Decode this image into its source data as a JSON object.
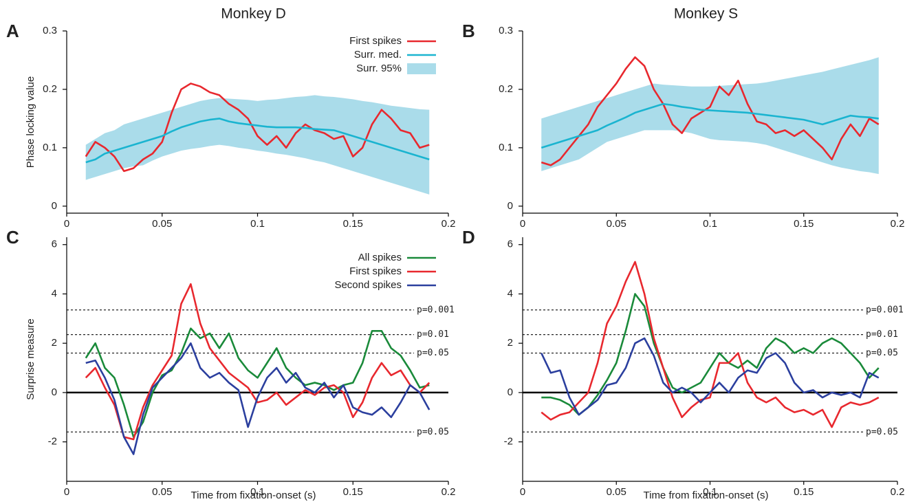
{
  "chart_data": [
    {
      "type": "line",
      "panel_label": "A",
      "title": "Monkey D",
      "y_label": "Phase locking value",
      "legend": "upper right",
      "x": [
        0.01,
        0.015,
        0.02,
        0.025,
        0.03,
        0.035,
        0.04,
        0.045,
        0.05,
        0.055,
        0.06,
        0.065,
        0.07,
        0.075,
        0.08,
        0.085,
        0.09,
        0.095,
        0.1,
        0.105,
        0.11,
        0.115,
        0.12,
        0.125,
        0.13,
        0.135,
        0.14,
        0.145,
        0.15,
        0.155,
        0.16,
        0.165,
        0.17,
        0.175,
        0.18,
        0.185,
        0.19
      ],
      "band": {
        "name": "Surr. 95%",
        "color": "#aadcea",
        "upper": [
          0.105,
          0.115,
          0.125,
          0.13,
          0.14,
          0.145,
          0.15,
          0.155,
          0.16,
          0.165,
          0.17,
          0.175,
          0.18,
          0.183,
          0.185,
          0.184,
          0.183,
          0.182,
          0.18,
          0.182,
          0.183,
          0.185,
          0.187,
          0.188,
          0.19,
          0.188,
          0.187,
          0.185,
          0.183,
          0.18,
          0.178,
          0.175,
          0.172,
          0.17,
          0.168,
          0.166,
          0.165
        ],
        "lower": [
          0.045,
          0.05,
          0.055,
          0.06,
          0.065,
          0.068,
          0.07,
          0.078,
          0.085,
          0.09,
          0.095,
          0.098,
          0.1,
          0.103,
          0.105,
          0.103,
          0.1,
          0.098,
          0.095,
          0.093,
          0.09,
          0.088,
          0.085,
          0.082,
          0.078,
          0.075,
          0.07,
          0.065,
          0.06,
          0.055,
          0.05,
          0.045,
          0.04,
          0.035,
          0.03,
          0.025,
          0.02
        ]
      },
      "series": [
        {
          "name": "First spikes",
          "color": "#e8282e",
          "values": [
            0.085,
            0.11,
            0.1,
            0.085,
            0.06,
            0.065,
            0.08,
            0.09,
            0.11,
            0.16,
            0.2,
            0.21,
            0.205,
            0.195,
            0.19,
            0.175,
            0.165,
            0.15,
            0.12,
            0.105,
            0.12,
            0.1,
            0.125,
            0.14,
            0.13,
            0.125,
            0.115,
            0.12,
            0.085,
            0.1,
            0.14,
            0.165,
            0.15,
            0.13,
            0.125,
            0.1,
            0.105
          ]
        },
        {
          "name": "Surr. med.",
          "color": "#1ab4d0",
          "values": [
            0.075,
            0.08,
            0.09,
            0.095,
            0.1,
            0.105,
            0.11,
            0.115,
            0.12,
            0.128,
            0.135,
            0.14,
            0.145,
            0.148,
            0.15,
            0.145,
            0.142,
            0.14,
            0.138,
            0.136,
            0.135,
            0.135,
            0.135,
            0.134,
            0.132,
            0.131,
            0.13,
            0.125,
            0.12,
            0.115,
            0.11,
            0.105,
            0.1,
            0.095,
            0.09,
            0.085,
            0.08
          ]
        }
      ],
      "xlim": [
        0,
        0.2
      ],
      "ylim": [
        -0.012,
        0.3
      ],
      "xticks": [
        0,
        0.05,
        0.1,
        0.15,
        0.2
      ],
      "yticks": [
        0,
        0.1,
        0.2,
        0.3
      ]
    },
    {
      "type": "line",
      "panel_label": "B",
      "title": "Monkey S",
      "x": [
        0.01,
        0.015,
        0.02,
        0.025,
        0.03,
        0.035,
        0.04,
        0.045,
        0.05,
        0.055,
        0.06,
        0.065,
        0.07,
        0.075,
        0.08,
        0.085,
        0.09,
        0.095,
        0.1,
        0.105,
        0.11,
        0.115,
        0.12,
        0.125,
        0.13,
        0.135,
        0.14,
        0.145,
        0.15,
        0.155,
        0.16,
        0.165,
        0.17,
        0.175,
        0.18,
        0.185,
        0.19
      ],
      "band": {
        "color": "#aadcea",
        "upper": [
          0.15,
          0.155,
          0.16,
          0.165,
          0.17,
          0.175,
          0.18,
          0.185,
          0.19,
          0.195,
          0.2,
          0.205,
          0.21,
          0.208,
          0.207,
          0.206,
          0.205,
          0.205,
          0.205,
          0.206,
          0.207,
          0.208,
          0.209,
          0.21,
          0.212,
          0.215,
          0.218,
          0.221,
          0.224,
          0.227,
          0.23,
          0.234,
          0.238,
          0.242,
          0.246,
          0.25,
          0.255
        ],
        "lower": [
          0.06,
          0.065,
          0.07,
          0.075,
          0.08,
          0.09,
          0.1,
          0.11,
          0.115,
          0.12,
          0.125,
          0.13,
          0.13,
          0.13,
          0.13,
          0.128,
          0.125,
          0.12,
          0.115,
          0.113,
          0.112,
          0.111,
          0.11,
          0.108,
          0.105,
          0.1,
          0.095,
          0.09,
          0.085,
          0.08,
          0.075,
          0.07,
          0.066,
          0.063,
          0.06,
          0.058,
          0.055
        ]
      },
      "series": [
        {
          "color": "#e8282e",
          "values": [
            0.075,
            0.07,
            0.08,
            0.1,
            0.12,
            0.14,
            0.17,
            0.19,
            0.21,
            0.235,
            0.255,
            0.24,
            0.2,
            0.175,
            0.14,
            0.125,
            0.15,
            0.16,
            0.17,
            0.205,
            0.19,
            0.215,
            0.175,
            0.145,
            0.14,
            0.125,
            0.13,
            0.12,
            0.13,
            0.115,
            0.1,
            0.08,
            0.115,
            0.14,
            0.12,
            0.15,
            0.14
          ]
        },
        {
          "color": "#1ab4d0",
          "values": [
            0.1,
            0.105,
            0.11,
            0.115,
            0.12,
            0.125,
            0.13,
            0.138,
            0.145,
            0.152,
            0.16,
            0.165,
            0.17,
            0.175,
            0.173,
            0.17,
            0.168,
            0.165,
            0.164,
            0.163,
            0.162,
            0.161,
            0.16,
            0.158,
            0.156,
            0.154,
            0.152,
            0.15,
            0.148,
            0.144,
            0.14,
            0.145,
            0.15,
            0.155,
            0.153,
            0.152,
            0.15
          ]
        }
      ],
      "xlim": [
        0,
        0.2
      ],
      "ylim": [
        -0.012,
        0.3
      ],
      "xticks": [
        0,
        0.05,
        0.1,
        0.15,
        0.2
      ],
      "yticks": [
        0,
        0.1,
        0.2,
        0.3
      ]
    },
    {
      "type": "line",
      "panel_label": "C",
      "y_label": "Surprise measure",
      "x_label": "Time from fixation-onset (s)",
      "legend": "upper right",
      "x": [
        0.01,
        0.015,
        0.02,
        0.025,
        0.03,
        0.035,
        0.04,
        0.045,
        0.05,
        0.055,
        0.06,
        0.065,
        0.07,
        0.075,
        0.08,
        0.085,
        0.09,
        0.095,
        0.1,
        0.105,
        0.11,
        0.115,
        0.12,
        0.125,
        0.13,
        0.135,
        0.14,
        0.145,
        0.15,
        0.155,
        0.16,
        0.165,
        0.17,
        0.175,
        0.18,
        0.185,
        0.19
      ],
      "series": [
        {
          "name": "All spikes",
          "color": "#1a8a3a",
          "values": [
            1.4,
            2.0,
            1.0,
            0.6,
            -0.5,
            -1.8,
            -1.2,
            0.0,
            0.7,
            0.9,
            1.6,
            2.6,
            2.2,
            2.4,
            1.8,
            2.4,
            1.4,
            0.9,
            0.6,
            1.2,
            1.8,
            1.0,
            0.6,
            0.3,
            0.4,
            0.3,
            0.1,
            0.3,
            0.4,
            1.2,
            2.5,
            2.5,
            1.8,
            1.5,
            0.9,
            0.2,
            0.3
          ]
        },
        {
          "name": "First spikes",
          "color": "#e8282e",
          "values": [
            0.6,
            1.0,
            0.2,
            -0.5,
            -1.8,
            -1.9,
            -0.6,
            0.3,
            0.9,
            1.5,
            3.6,
            4.4,
            2.8,
            1.8,
            1.3,
            0.8,
            0.5,
            0.2,
            -0.4,
            -0.3,
            0.0,
            -0.5,
            -0.2,
            0.1,
            -0.1,
            0.2,
            0.3,
            0.0,
            -1.0,
            -0.4,
            0.6,
            1.2,
            0.7,
            0.9,
            0.3,
            0.0,
            0.4
          ]
        },
        {
          "name": "Second spikes",
          "color": "#2b3f9e",
          "values": [
            1.2,
            1.3,
            0.6,
            -0.3,
            -1.8,
            -2.5,
            -0.9,
            0.2,
            0.6,
            1.0,
            1.4,
            2.0,
            1.0,
            0.6,
            0.8,
            0.4,
            0.1,
            -1.4,
            -0.2,
            0.6,
            1.0,
            0.4,
            0.8,
            0.2,
            0.0,
            0.4,
            -0.2,
            0.3,
            -0.6,
            -0.8,
            -0.9,
            -0.6,
            -1.0,
            -0.4,
            0.3,
            0.0,
            -0.7
          ]
        }
      ],
      "thresholds": [
        {
          "value": 3.35,
          "label": "p=0.001"
        },
        {
          "value": 2.35,
          "label": "p=0.01"
        },
        {
          "value": 1.6,
          "label": "p=0.05"
        },
        {
          "value": -1.6,
          "label": "p=0.05"
        }
      ],
      "xlim": [
        0,
        0.2
      ],
      "ylim": [
        -3.6,
        6.3
      ],
      "xticks": [
        0,
        0.05,
        0.1,
        0.15,
        0.2
      ],
      "yticks": [
        -2,
        0,
        2,
        4,
        6
      ]
    },
    {
      "type": "line",
      "panel_label": "D",
      "x_label": "Time from fixation-onset (s)",
      "x": [
        0.01,
        0.015,
        0.02,
        0.025,
        0.03,
        0.035,
        0.04,
        0.045,
        0.05,
        0.055,
        0.06,
        0.065,
        0.07,
        0.075,
        0.08,
        0.085,
        0.09,
        0.095,
        0.1,
        0.105,
        0.11,
        0.115,
        0.12,
        0.125,
        0.13,
        0.135,
        0.14,
        0.145,
        0.15,
        0.155,
        0.16,
        0.165,
        0.17,
        0.175,
        0.18,
        0.185,
        0.19
      ],
      "series": [
        {
          "color": "#1a8a3a",
          "values": [
            -0.2,
            -0.2,
            -0.3,
            -0.5,
            -0.9,
            -0.6,
            -0.1,
            0.5,
            1.2,
            2.5,
            4.0,
            3.5,
            2.0,
            1.0,
            0.2,
            0.0,
            0.2,
            0.4,
            1.0,
            1.6,
            1.2,
            1.0,
            1.3,
            1.0,
            1.8,
            2.2,
            2.0,
            1.6,
            1.8,
            1.6,
            2.0,
            2.2,
            2.0,
            1.6,
            1.2,
            0.6,
            1.0
          ]
        },
        {
          "color": "#e8282e",
          "values": [
            -0.8,
            -1.1,
            -0.9,
            -0.8,
            -0.4,
            0.0,
            1.2,
            2.8,
            3.5,
            4.5,
            5.3,
            4.0,
            2.2,
            1.0,
            -0.2,
            -1.0,
            -0.6,
            -0.3,
            -0.2,
            1.2,
            1.2,
            1.6,
            0.4,
            -0.2,
            -0.4,
            -0.2,
            -0.6,
            -0.8,
            -0.7,
            -0.9,
            -0.7,
            -1.4,
            -0.6,
            -0.4,
            -0.5,
            -0.4,
            -0.2
          ]
        },
        {
          "color": "#2b3f9e",
          "values": [
            1.6,
            0.8,
            0.9,
            -0.2,
            -0.9,
            -0.6,
            -0.3,
            0.3,
            0.4,
            1.0,
            2.0,
            2.2,
            1.5,
            0.4,
            0.0,
            0.2,
            0.0,
            -0.4,
            0.0,
            0.4,
            0.0,
            0.6,
            0.9,
            0.8,
            1.4,
            1.6,
            1.2,
            0.4,
            0.0,
            0.1,
            -0.2,
            0.0,
            -0.1,
            0.0,
            -0.2,
            0.8,
            0.6
          ]
        }
      ],
      "thresholds": [
        {
          "value": 3.35,
          "label": "p=0.001"
        },
        {
          "value": 2.35,
          "label": "p=0.01"
        },
        {
          "value": 1.6,
          "label": "p=0.05"
        },
        {
          "value": -1.6,
          "label": "p=0.05"
        }
      ],
      "xlim": [
        0,
        0.2
      ],
      "ylim": [
        -3.6,
        6.3
      ],
      "xticks": [
        0,
        0.05,
        0.1,
        0.15,
        0.2
      ],
      "yticks": [
        -2,
        0,
        2,
        4,
        6
      ]
    }
  ]
}
